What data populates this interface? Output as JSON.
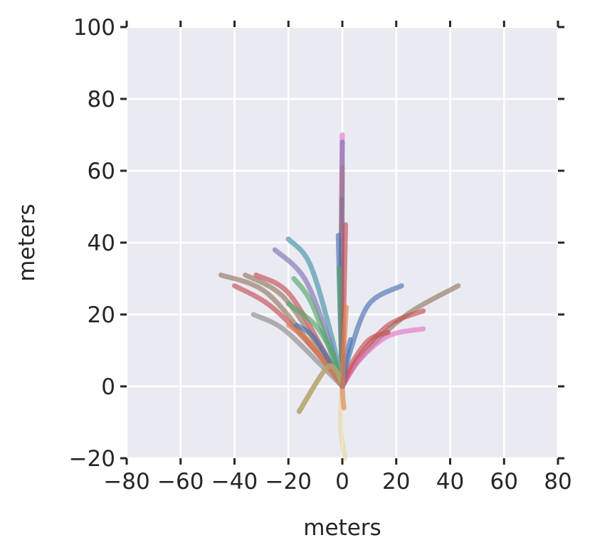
{
  "chart_data": {
    "type": "line",
    "title": "",
    "xlabel": "meters",
    "ylabel": "meters",
    "xlim": [
      -80,
      80
    ],
    "ylim": [
      -20,
      100
    ],
    "xticks": [
      -80,
      -60,
      -40,
      -20,
      0,
      20,
      40,
      60,
      80
    ],
    "yticks": [
      -20,
      0,
      20,
      40,
      60,
      80,
      100
    ],
    "xtick_labels": [
      "−80",
      "−60",
      "−40",
      "−20",
      "0",
      "20",
      "40",
      "60",
      "80"
    ],
    "ytick_labels": [
      "−20",
      "0",
      "20",
      "40",
      "60",
      "80",
      "100"
    ],
    "grid": true,
    "legend": "none",
    "background": "#eaeaf2",
    "series": [
      {
        "color": "#e377c2",
        "x": [
          0,
          -0.5,
          -0.4,
          -0.2,
          0
        ],
        "y": [
          0,
          20,
          40,
          60,
          70
        ]
      },
      {
        "color": "#dd8452",
        "x": [
          0,
          -0.3,
          -0.2,
          0
        ],
        "y": [
          0,
          20,
          40,
          61
        ]
      },
      {
        "color": "#937860",
        "x": [
          0,
          -0.3,
          -0.4,
          -0.2
        ],
        "y": [
          0,
          15,
          35,
          52
        ]
      },
      {
        "color": "#8172b2",
        "x": [
          0,
          -0.3,
          -0.1,
          0
        ],
        "y": [
          0,
          20,
          45,
          68
        ]
      },
      {
        "color": "#4c72b0",
        "x": [
          0,
          -0.8,
          -1.5
        ],
        "y": [
          0,
          20,
          42
        ]
      },
      {
        "color": "#55a868",
        "x": [
          0,
          -0.5,
          -1.2
        ],
        "y": [
          0,
          16,
          33
        ]
      },
      {
        "color": "#c44e52",
        "x": [
          0,
          0.5,
          1.2
        ],
        "y": [
          0,
          20,
          45
        ]
      },
      {
        "color": "#8c8c8c",
        "x": [
          0,
          -4,
          -12,
          -20
        ],
        "y": [
          0,
          14,
          34,
          41
        ]
      },
      {
        "color": "#64b5cd",
        "x": [
          0,
          -4,
          -12,
          -20
        ],
        "y": [
          0,
          14,
          34,
          41
        ]
      },
      {
        "color": "#8172b2",
        "x": [
          0,
          -5,
          -14,
          -25
        ],
        "y": [
          0,
          13,
          30,
          38
        ]
      },
      {
        "color": "#937860",
        "x": [
          0,
          -10,
          -28,
          -45
        ],
        "y": [
          0,
          10,
          26,
          31
        ]
      },
      {
        "color": "#937860",
        "x": [
          0,
          -8,
          -22,
          -36
        ],
        "y": [
          0,
          10,
          25,
          31
        ]
      },
      {
        "color": "#c44e52",
        "x": [
          0,
          -9,
          -26,
          -40
        ],
        "y": [
          0,
          9,
          22,
          28
        ]
      },
      {
        "color": "#c44e52",
        "x": [
          0,
          -7,
          -20,
          -32
        ],
        "y": [
          0,
          10,
          26,
          31
        ]
      },
      {
        "color": "#55a868",
        "x": [
          0,
          -5,
          -12,
          -18
        ],
        "y": [
          0,
          11,
          24,
          30
        ]
      },
      {
        "color": "#8c8c8c",
        "x": [
          0,
          -8,
          -22,
          -33
        ],
        "y": [
          0,
          6,
          16,
          20
        ]
      },
      {
        "color": "#4c72b0",
        "x": [
          0,
          -4,
          -11,
          -17
        ],
        "y": [
          0,
          6,
          14,
          17
        ]
      },
      {
        "color": "#dd8452",
        "x": [
          0,
          -5,
          -13,
          -20
        ],
        "y": [
          0,
          5,
          13,
          17
        ]
      },
      {
        "color": "#55a868",
        "x": [
          0,
          -3,
          -10,
          -20
        ],
        "y": [
          0,
          8,
          17,
          23
        ]
      },
      {
        "color": "#8c8c8c",
        "x": [
          0,
          -2,
          -6,
          -16
        ],
        "y": [
          0,
          4,
          5,
          -7
        ]
      },
      {
        "color": "#c4ad66",
        "x": [
          0,
          -2,
          -6,
          -16
        ],
        "y": [
          0,
          4,
          5,
          -7
        ]
      },
      {
        "color": "#e5d7a0",
        "x": [
          0,
          -0.5,
          -0.5,
          1
        ],
        "y": [
          0,
          -6,
          -13,
          -20
        ]
      },
      {
        "color": "#dd8452",
        "x": [
          0,
          0.2,
          0.6
        ],
        "y": [
          0,
          -3,
          -6
        ]
      },
      {
        "color": "#4c72b0",
        "x": [
          0,
          3,
          10,
          22
        ],
        "y": [
          0,
          10,
          23,
          28
        ]
      },
      {
        "color": "#937860",
        "x": [
          0,
          8,
          24,
          43
        ],
        "y": [
          0,
          9,
          20,
          28
        ]
      },
      {
        "color": "#c44e52",
        "x": [
          0,
          6,
          17,
          30
        ],
        "y": [
          0,
          8,
          17,
          21
        ]
      },
      {
        "color": "#e377c2",
        "x": [
          0,
          6,
          17,
          30
        ],
        "y": [
          0,
          7,
          14,
          16
        ]
      },
      {
        "color": "#c44e52",
        "x": [
          0,
          4,
          10,
          17
        ],
        "y": [
          0,
          7,
          13,
          15
        ]
      },
      {
        "color": "#4c72b0",
        "x": [
          0,
          1.5,
          3
        ],
        "y": [
          0,
          8,
          13
        ]
      },
      {
        "color": "#dd8452",
        "x": [
          0,
          0.5,
          1.5
        ],
        "y": [
          0,
          10,
          22
        ]
      }
    ]
  }
}
